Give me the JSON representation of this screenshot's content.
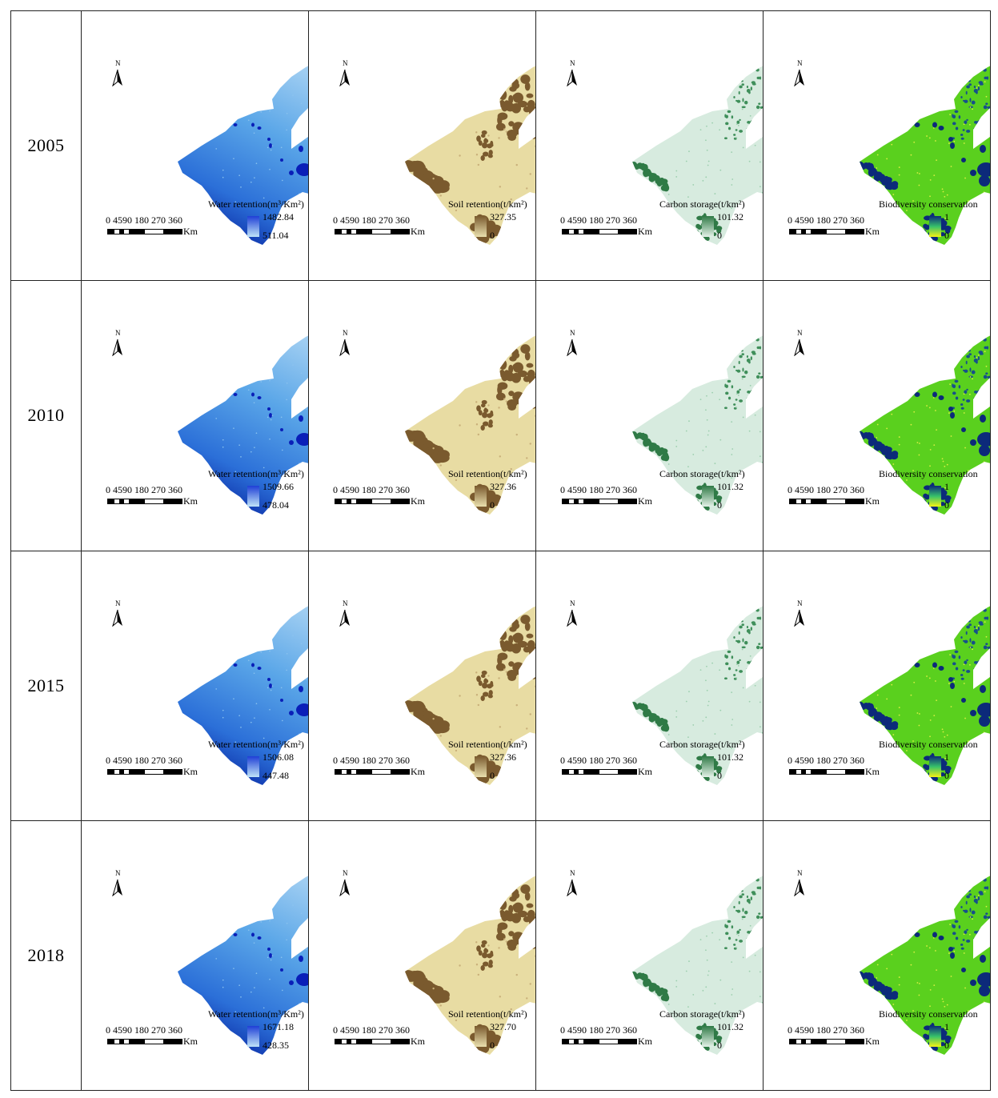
{
  "columns": [
    {
      "key": "water",
      "legend_title": "Water retention(m³/Km²)",
      "ramp_high": "#1f3fd6",
      "ramp_low": "#bfe3f8"
    },
    {
      "key": "soil",
      "legend_title": "Soil retention(t/km²)",
      "ramp_high": "#7a5a2e",
      "ramp_low": "#e9dfad"
    },
    {
      "key": "carbon",
      "legend_title": "Carbon storage(t/km²)",
      "ramp_high": "#2f7a46",
      "ramp_low": "#e3f1e7"
    },
    {
      "key": "bio",
      "legend_title": "Biodiversity conservation",
      "ramp_high": "#0c2a7a",
      "ramp_low": "#f4f214"
    }
  ],
  "scale": {
    "ticks": "0 4590   180  270  360",
    "unit": "Km"
  },
  "north_label": "N",
  "rows": [
    {
      "year": "2005",
      "maps": [
        {
          "max": "1482.84",
          "min": "511.04"
        },
        {
          "max": "327.35",
          "min": "0"
        },
        {
          "max": "101.32",
          "min": "0"
        },
        {
          "max": "1",
          "min": "0"
        }
      ]
    },
    {
      "year": "2010",
      "maps": [
        {
          "max": "1509.66",
          "min": "478.04"
        },
        {
          "max": "327.36",
          "min": "0"
        },
        {
          "max": "101.32",
          "min": "0"
        },
        {
          "max": "1",
          "min": "0"
        }
      ]
    },
    {
      "year": "2015",
      "maps": [
        {
          "max": "1506.08",
          "min": "447.48"
        },
        {
          "max": "327.36",
          "min": "0"
        },
        {
          "max": "101.32",
          "min": "0"
        },
        {
          "max": "1",
          "min": "0"
        }
      ]
    },
    {
      "year": "2018",
      "maps": [
        {
          "max": "1671.18",
          "min": "428.35"
        },
        {
          "max": "327.70",
          "min": "0"
        },
        {
          "max": "101.32",
          "min": "0"
        },
        {
          "max": "1",
          "min": "0"
        }
      ]
    }
  ]
}
